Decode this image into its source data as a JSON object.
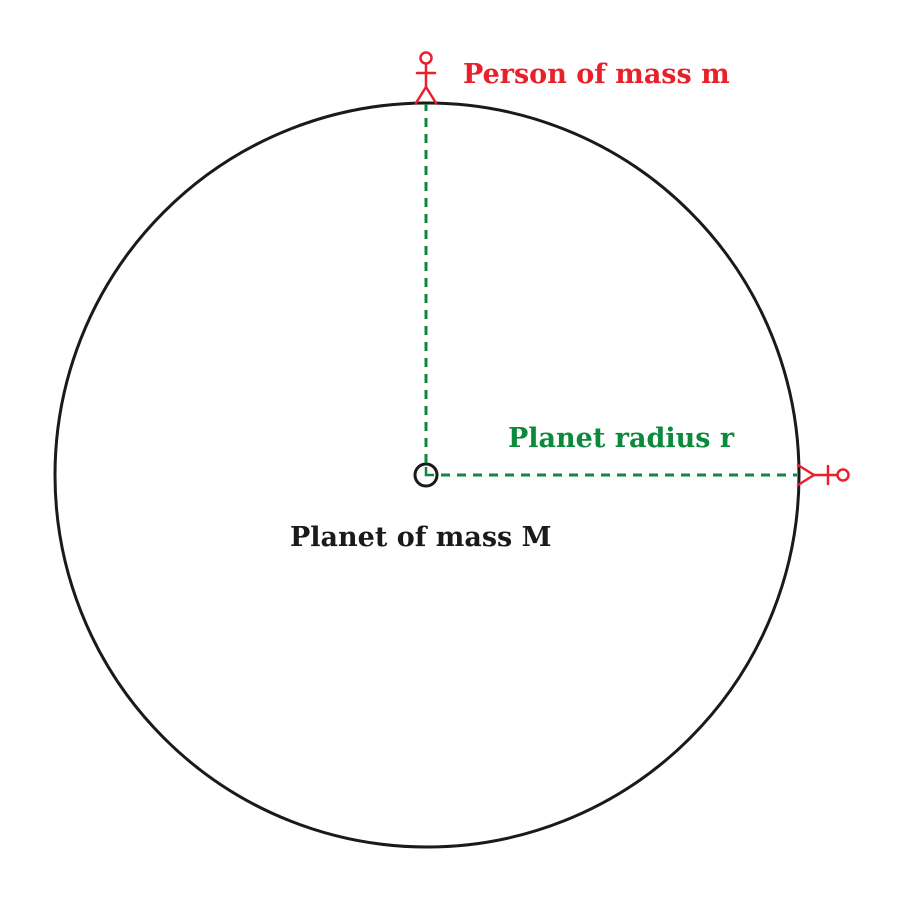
{
  "labels": {
    "person": "Person of mass m",
    "radius": "Planet radius r",
    "planet": "Planet of mass M"
  },
  "colors": {
    "planet_outline": "#1a1a1a",
    "person": "#e8202a",
    "radius": "#0b8a3c",
    "background": "#ffffff"
  }
}
